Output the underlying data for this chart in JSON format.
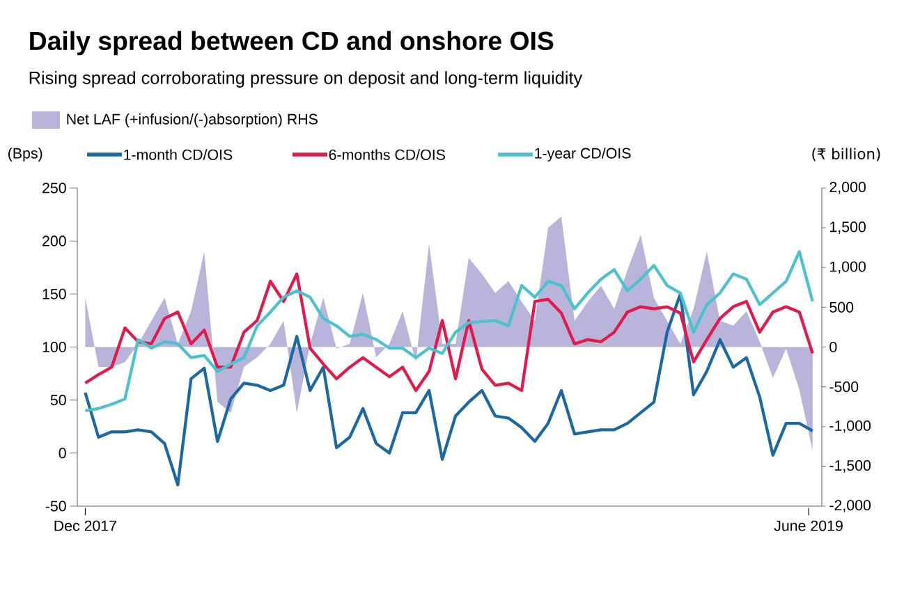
{
  "chart_data": {
    "type": "line",
    "title": "Daily spread between CD and onshore OIS",
    "subtitle": "Rising spread corroborating pressure on deposit and long-term liquidity",
    "ylabel": "(Bps)",
    "y2label": "(₹ billion)",
    "legend": "top",
    "x": [
      "2017-12-01",
      "2017-12-11",
      "2017-12-21",
      "2017-12-31",
      "2018-01-10",
      "2018-01-20",
      "2018-01-30",
      "2018-02-09",
      "2018-02-19",
      "2018-03-01",
      "2018-03-11",
      "2018-03-21",
      "2018-03-31",
      "2018-04-10",
      "2018-04-20",
      "2018-04-30",
      "2018-05-10",
      "2018-05-20",
      "2018-05-30",
      "2018-06-09",
      "2018-06-19",
      "2018-06-29",
      "2018-07-09",
      "2018-07-19",
      "2018-07-29",
      "2018-08-08",
      "2018-08-18",
      "2018-08-28",
      "2018-09-07",
      "2018-09-17",
      "2018-09-27",
      "2018-10-07",
      "2018-10-17",
      "2018-10-27",
      "2018-11-06",
      "2018-11-16",
      "2018-11-26",
      "2018-12-06",
      "2018-12-16",
      "2018-12-26",
      "2019-01-05",
      "2019-01-15",
      "2019-01-25",
      "2019-02-04",
      "2019-02-14",
      "2019-02-24",
      "2019-03-06",
      "2019-03-16",
      "2019-03-26",
      "2019-04-05",
      "2019-04-15",
      "2019-04-25",
      "2019-05-05",
      "2019-05-15",
      "2019-05-25",
      "2019-06-04"
    ],
    "series": [
      {
        "name": "Net LAF (+infusion/(-)absorption) RHS",
        "type": "area",
        "axis": "y2",
        "color": "#b9b5da",
        "values": [
          620,
          -250,
          -250,
          -190,
          40,
          330,
          620,
          40,
          450,
          1200,
          -690,
          -830,
          -250,
          -130,
          40,
          330,
          -830,
          40,
          620,
          -20,
          40,
          680,
          -130,
          40,
          450,
          -190,
          1300,
          40,
          40,
          1120,
          920,
          680,
          830,
          570,
          330,
          1500,
          1640,
          330,
          570,
          770,
          480,
          970,
          1410,
          620,
          330,
          40,
          480,
          1200,
          330,
          270,
          450,
          70,
          -390,
          -20,
          -540,
          -1300
        ]
      },
      {
        "name": "1-month CD/OIS",
        "color": "#1c68a3",
        "values": [
          57,
          15,
          20,
          20,
          22,
          20,
          9,
          -30,
          70,
          80,
          11,
          51,
          66,
          64,
          59,
          64,
          110,
          59,
          81,
          5,
          15,
          42,
          9,
          0,
          38,
          38,
          59,
          -6,
          35,
          48,
          59,
          35,
          33,
          24,
          11,
          28,
          59,
          18,
          20,
          22,
          22,
          28,
          38,
          48,
          114,
          150,
          55,
          77,
          107,
          81,
          90,
          53,
          -2,
          28,
          28,
          21
        ]
      },
      {
        "name": "6-months CD/OIS",
        "color": "#e3194b",
        "values": [
          66,
          74,
          81,
          118,
          105,
          103,
          127,
          133,
          103,
          116,
          81,
          81,
          114,
          125,
          162,
          143,
          169,
          99,
          84,
          70,
          81,
          90,
          81,
          72,
          81,
          59,
          77,
          125,
          70,
          125,
          79,
          64,
          66,
          59,
          143,
          145,
          132,
          103,
          107,
          105,
          114,
          133,
          138,
          136,
          138,
          132,
          86,
          107,
          127,
          138,
          143,
          114,
          133,
          138,
          133,
          94
        ]
      },
      {
        "name": "1-year CD/OIS",
        "color": "#4cc2cf",
        "values": [
          40,
          42,
          46,
          51,
          107,
          99,
          105,
          103,
          90,
          92,
          77,
          84,
          90,
          120,
          133,
          147,
          153,
          147,
          127,
          120,
          110,
          112,
          107,
          99,
          99,
          90,
          99,
          94,
          114,
          123,
          124,
          125,
          120,
          158,
          147,
          162,
          158,
          136,
          151,
          164,
          173,
          153,
          164,
          177,
          158,
          151,
          114,
          140,
          151,
          169,
          164,
          140,
          151,
          162,
          190,
          143
        ]
      }
    ],
    "xlim": [
      "2017-11-25",
      "2019-06-11"
    ],
    "xticks": [
      {
        "value": "2017-12-01",
        "label": "Dec 2017"
      },
      {
        "value": "2019-06-01",
        "label": "June 2019"
      }
    ],
    "ylim": [
      -50,
      250
    ],
    "yticks": [
      -50,
      0,
      50,
      100,
      150,
      200,
      250
    ],
    "y2lim": [
      -2000,
      2000
    ],
    "y2ticks": [
      {
        "value": -2000,
        "label": "-2,000"
      },
      {
        "value": -1500,
        "label": "-1,500"
      },
      {
        "value": -1000,
        "label": "-1,000"
      },
      {
        "value": -500,
        "label": "-500"
      },
      {
        "value": 0,
        "label": "0"
      },
      {
        "value": 500,
        "label": "500"
      },
      {
        "value": 1000,
        "label": "1,000"
      },
      {
        "value": 1500,
        "label": "1,500"
      },
      {
        "value": 2000,
        "label": "2,000"
      }
    ]
  }
}
